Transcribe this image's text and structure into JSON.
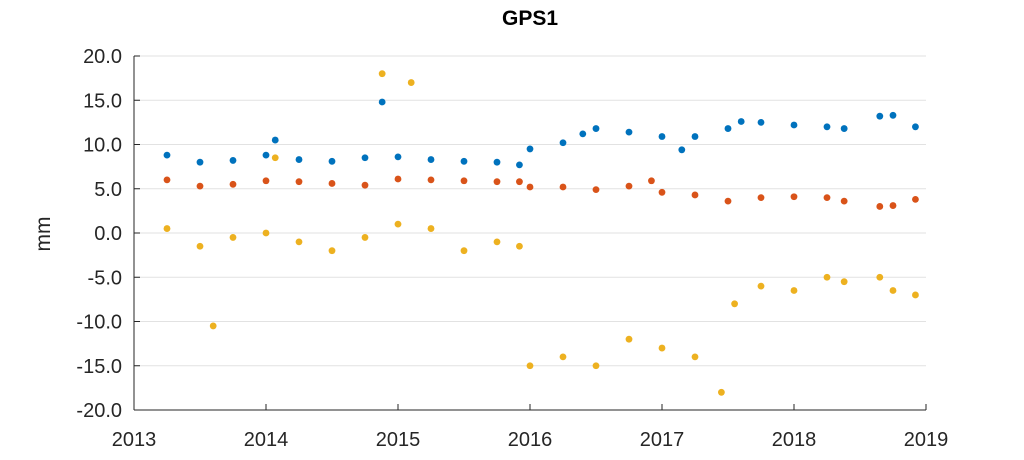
{
  "chart_data": {
    "type": "scatter",
    "title": "GPS1",
    "xlabel": "",
    "ylabel": "mm",
    "xlim": [
      2013,
      2019
    ],
    "ylim": [
      -20,
      20
    ],
    "xticks": [
      "2013",
      "2014",
      "2015",
      "2016",
      "2017",
      "2018",
      "2019"
    ],
    "yticks": [
      "20.0",
      "15.0",
      "10.0",
      "5.0",
      "0.0",
      "-5.0",
      "-10.0",
      "-15.0",
      "-20.0"
    ],
    "grid": "horizontal",
    "legend": "none",
    "series": [
      {
        "color": "#0072BD",
        "points": [
          [
            2013.25,
            8.8
          ],
          [
            2013.5,
            8.0
          ],
          [
            2013.75,
            8.2
          ],
          [
            2014.0,
            8.8
          ],
          [
            2014.07,
            10.5
          ],
          [
            2014.25,
            8.3
          ],
          [
            2014.5,
            8.1
          ],
          [
            2014.75,
            8.5
          ],
          [
            2014.88,
            14.8
          ],
          [
            2015.0,
            8.6
          ],
          [
            2015.25,
            8.3
          ],
          [
            2015.5,
            8.1
          ],
          [
            2015.75,
            8.0
          ],
          [
            2015.92,
            7.7
          ],
          [
            2016.0,
            9.5
          ],
          [
            2016.25,
            10.2
          ],
          [
            2016.4,
            11.2
          ],
          [
            2016.5,
            11.8
          ],
          [
            2016.75,
            11.4
          ],
          [
            2017.0,
            10.9
          ],
          [
            2017.15,
            9.4
          ],
          [
            2017.25,
            10.9
          ],
          [
            2017.5,
            11.8
          ],
          [
            2017.6,
            12.6
          ],
          [
            2017.75,
            12.5
          ],
          [
            2018.0,
            12.2
          ],
          [
            2018.25,
            12.0
          ],
          [
            2018.38,
            11.8
          ],
          [
            2018.65,
            13.2
          ],
          [
            2018.75,
            13.3
          ],
          [
            2018.92,
            12.0
          ]
        ]
      },
      {
        "color": "#D95319",
        "points": [
          [
            2013.25,
            6.0
          ],
          [
            2013.5,
            5.3
          ],
          [
            2013.75,
            5.5
          ],
          [
            2014.0,
            5.9
          ],
          [
            2014.25,
            5.8
          ],
          [
            2014.5,
            5.6
          ],
          [
            2014.75,
            5.4
          ],
          [
            2015.0,
            6.1
          ],
          [
            2015.25,
            6.0
          ],
          [
            2015.5,
            5.9
          ],
          [
            2015.75,
            5.8
          ],
          [
            2015.92,
            5.8
          ],
          [
            2016.0,
            5.2
          ],
          [
            2016.25,
            5.2
          ],
          [
            2016.5,
            4.9
          ],
          [
            2016.75,
            5.3
          ],
          [
            2016.92,
            5.9
          ],
          [
            2017.0,
            4.6
          ],
          [
            2017.25,
            4.3
          ],
          [
            2017.5,
            3.6
          ],
          [
            2017.75,
            4.0
          ],
          [
            2018.0,
            4.1
          ],
          [
            2018.25,
            4.0
          ],
          [
            2018.38,
            3.6
          ],
          [
            2018.65,
            3.0
          ],
          [
            2018.75,
            3.1
          ],
          [
            2018.92,
            3.8
          ]
        ]
      },
      {
        "color": "#EDB120",
        "points": [
          [
            2013.25,
            0.5
          ],
          [
            2013.5,
            -1.5
          ],
          [
            2013.6,
            -10.5
          ],
          [
            2013.75,
            -0.5
          ],
          [
            2014.0,
            0.0
          ],
          [
            2014.07,
            8.5
          ],
          [
            2014.25,
            -1.0
          ],
          [
            2014.5,
            -2.0
          ],
          [
            2014.75,
            -0.5
          ],
          [
            2014.88,
            18.0
          ],
          [
            2015.0,
            1.0
          ],
          [
            2015.1,
            17.0
          ],
          [
            2015.25,
            0.5
          ],
          [
            2015.5,
            -2.0
          ],
          [
            2015.75,
            -1.0
          ],
          [
            2015.92,
            -1.5
          ],
          [
            2016.0,
            -15.0
          ],
          [
            2016.25,
            -14.0
          ],
          [
            2016.5,
            -15.0
          ],
          [
            2016.75,
            -12.0
          ],
          [
            2017.0,
            -13.0
          ],
          [
            2017.25,
            -14.0
          ],
          [
            2017.45,
            -18.0
          ],
          [
            2017.55,
            -8.0
          ],
          [
            2017.75,
            -6.0
          ],
          [
            2018.0,
            -6.5
          ],
          [
            2018.25,
            -5.0
          ],
          [
            2018.38,
            -5.5
          ],
          [
            2018.65,
            -5.0
          ],
          [
            2018.75,
            -6.5
          ],
          [
            2018.92,
            -7.0
          ]
        ]
      }
    ]
  }
}
